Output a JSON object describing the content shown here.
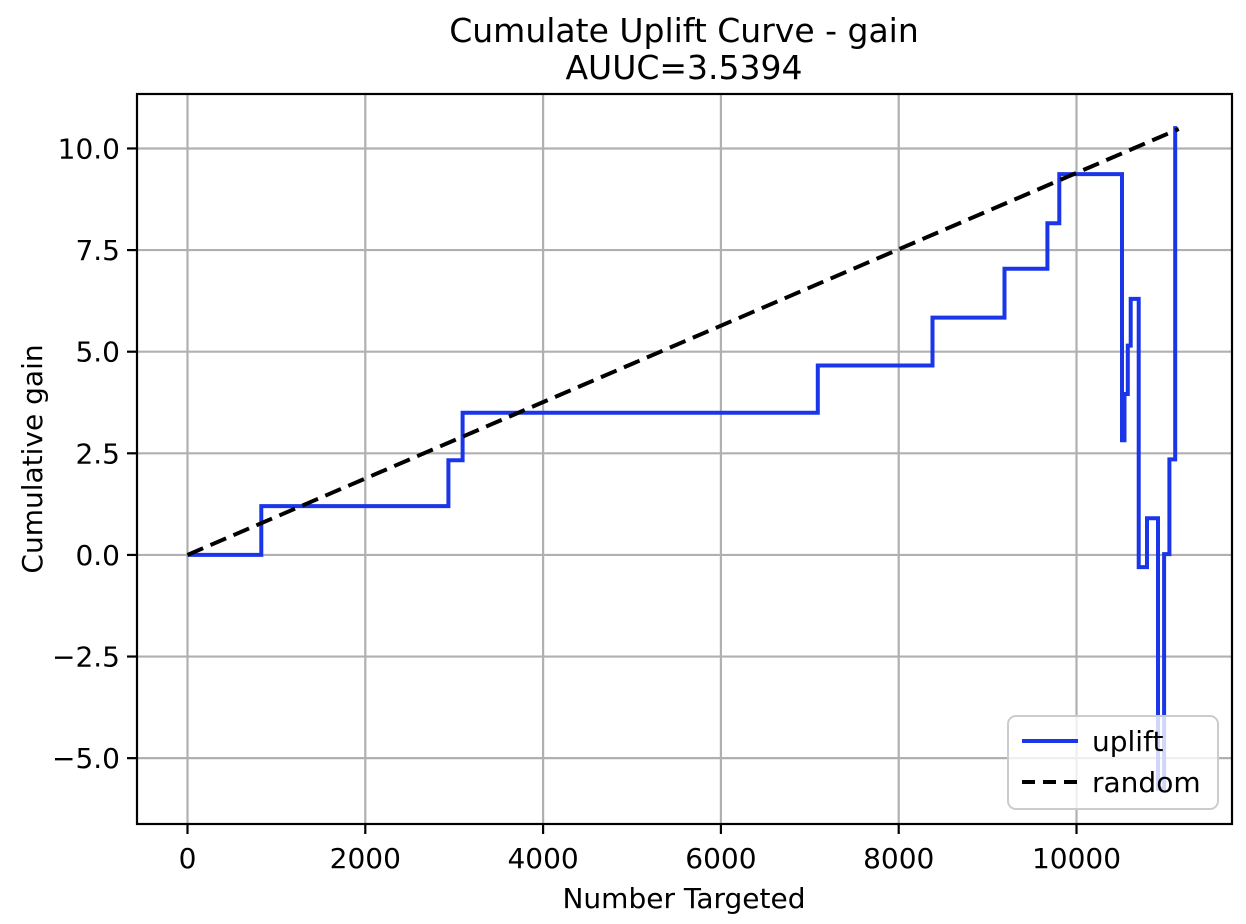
{
  "figure": {
    "background_color": "#ffffff",
    "grid_color": "#b0b0b0",
    "spine_color": "#000000",
    "text_color": "#000000"
  },
  "chart_data": {
    "type": "line",
    "title": "Cumulate Uplift Curve - gain",
    "subtitle": "AUUC=3.5394",
    "auuc": 3.5394,
    "xlabel": "Number Targeted",
    "ylabel": "Cumulative gain",
    "xlim": [
      -568,
      11749
    ],
    "ylim": [
      -6.62,
      11.34
    ],
    "xticks": [
      0,
      2000,
      4000,
      6000,
      8000,
      10000
    ],
    "yticks": [
      -5.0,
      -2.5,
      0.0,
      2.5,
      5.0,
      7.5,
      10.0
    ],
    "grid": true,
    "legend_position": "lower right",
    "series": [
      {
        "name": "uplift",
        "color": "#1a36e8",
        "style": "solid",
        "points": [
          [
            0,
            0
          ],
          [
            830,
            0
          ],
          [
            830,
            1.2
          ],
          [
            2935,
            1.2
          ],
          [
            2935,
            2.33
          ],
          [
            3095,
            2.33
          ],
          [
            3095,
            3.5
          ],
          [
            7090,
            3.5
          ],
          [
            7090,
            4.66
          ],
          [
            8380,
            4.66
          ],
          [
            8380,
            5.84
          ],
          [
            9190,
            5.84
          ],
          [
            9190,
            7.04
          ],
          [
            9672,
            7.04
          ],
          [
            9672,
            8.16
          ],
          [
            9806,
            8.16
          ],
          [
            9806,
            9.37
          ],
          [
            10512,
            9.37
          ],
          [
            10512,
            2.82
          ],
          [
            10540,
            2.82
          ],
          [
            10540,
            3.96
          ],
          [
            10577,
            3.96
          ],
          [
            10577,
            5.15
          ],
          [
            10610,
            5.15
          ],
          [
            10610,
            6.3
          ],
          [
            10700,
            6.3
          ],
          [
            10700,
            -0.3
          ],
          [
            10793,
            -0.3
          ],
          [
            10793,
            0.9
          ],
          [
            10917,
            0.9
          ],
          [
            10917,
            -5.75
          ],
          [
            10985,
            -5.75
          ],
          [
            10985,
            0.02
          ],
          [
            11045,
            0.02
          ],
          [
            11045,
            2.35
          ],
          [
            11110,
            2.35
          ],
          [
            11110,
            10.55
          ]
        ]
      },
      {
        "name": "random",
        "color": "#000000",
        "style": "dashed",
        "points": [
          [
            0,
            0
          ],
          [
            11150,
            10.48
          ]
        ]
      }
    ]
  }
}
